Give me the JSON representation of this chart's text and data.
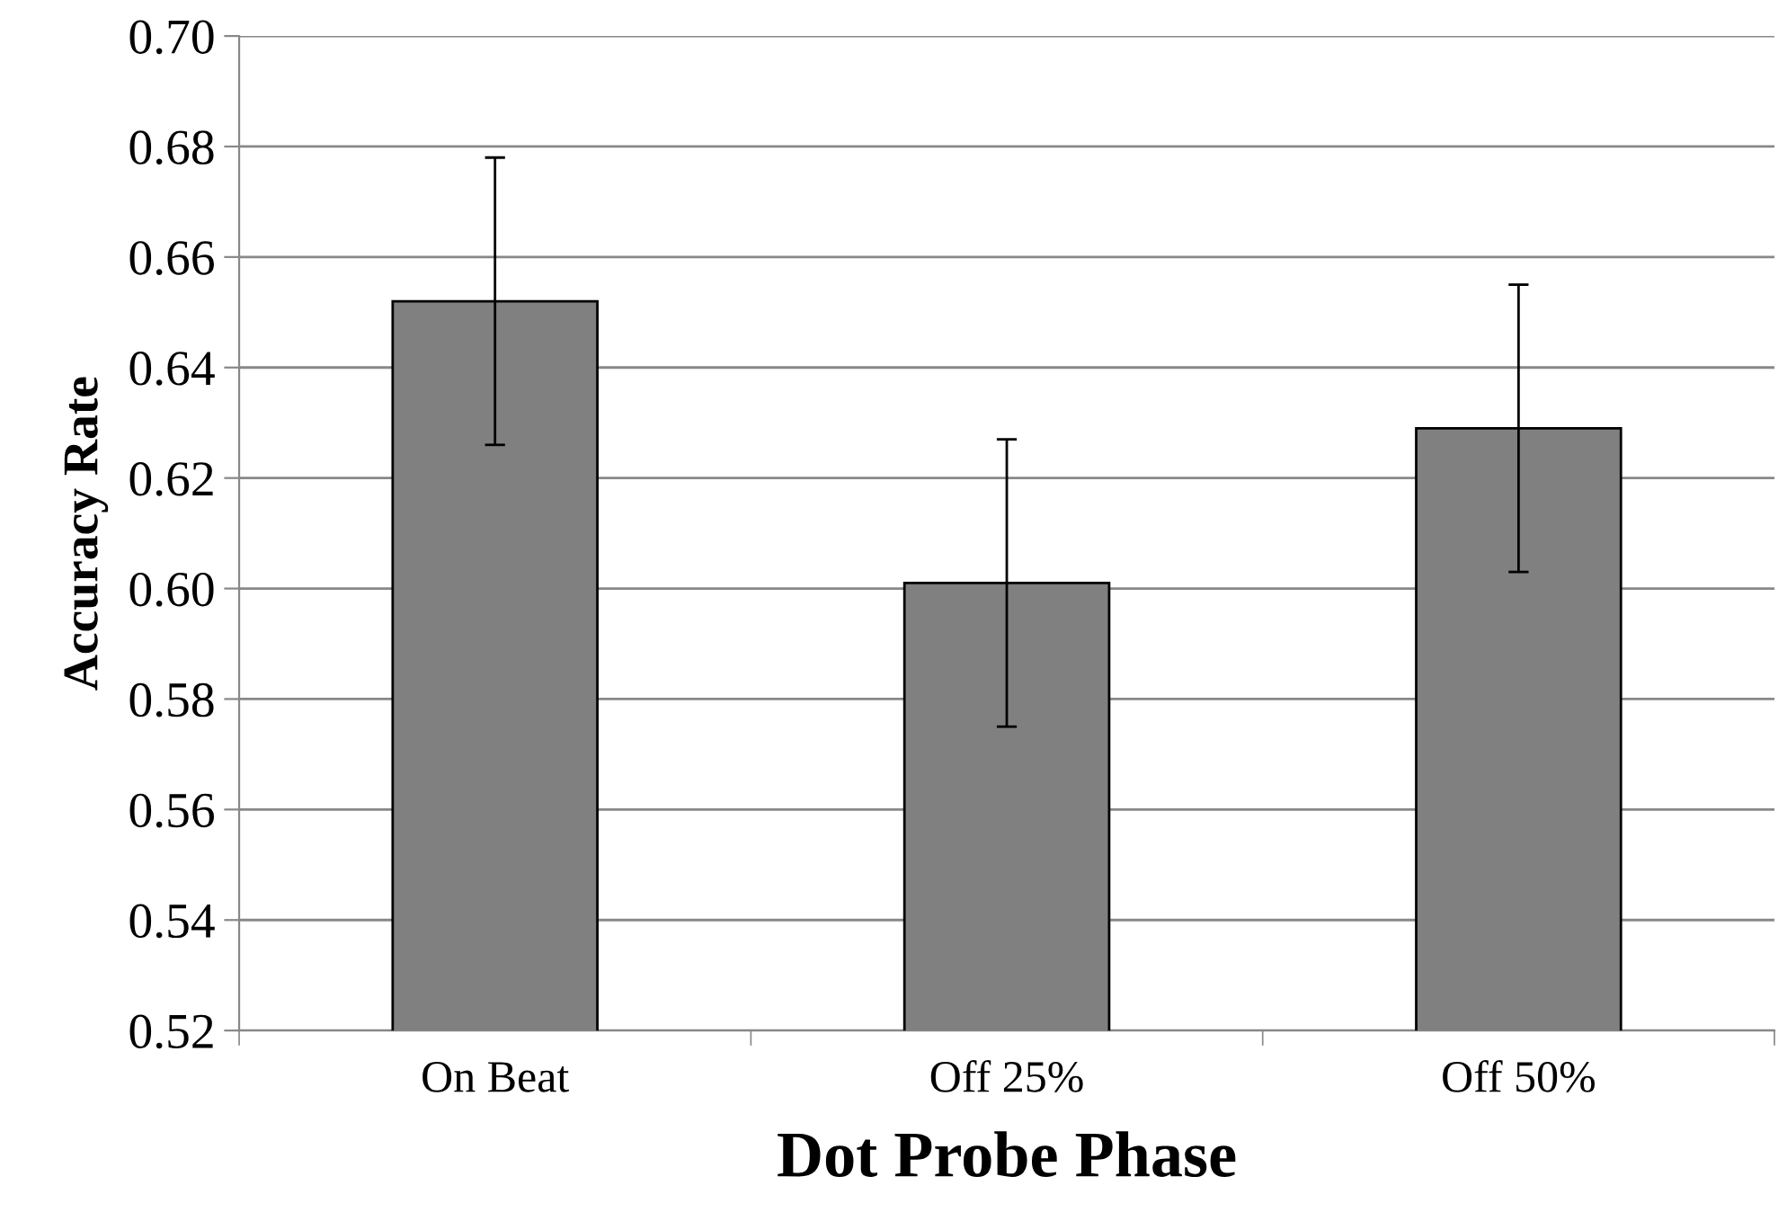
{
  "chart_data": {
    "type": "bar",
    "xlabel": "Dot Probe Phase",
    "ylabel": "Accuracy Rate",
    "categories": [
      "On Beat",
      "Off 25%",
      "Off 50%"
    ],
    "values": [
      0.652,
      0.601,
      0.629
    ],
    "errors": [
      0.026,
      0.026,
      0.026
    ],
    "color": "#808080",
    "ylim": [
      0.52,
      0.7
    ],
    "yticks": [
      {
        "value": 0.52,
        "label": "0.52"
      },
      {
        "value": 0.54,
        "label": "0.54"
      },
      {
        "value": 0.56,
        "label": "0.56"
      },
      {
        "value": 0.58,
        "label": "0.58"
      },
      {
        "value": 0.6,
        "label": "0.60"
      },
      {
        "value": 0.62,
        "label": "0.62"
      },
      {
        "value": 0.64,
        "label": "0.64"
      },
      {
        "value": 0.66,
        "label": "0.66"
      },
      {
        "value": 0.68,
        "label": "0.68"
      },
      {
        "value": 0.7,
        "label": "0.70"
      }
    ],
    "grid": "y",
    "legend": false
  }
}
